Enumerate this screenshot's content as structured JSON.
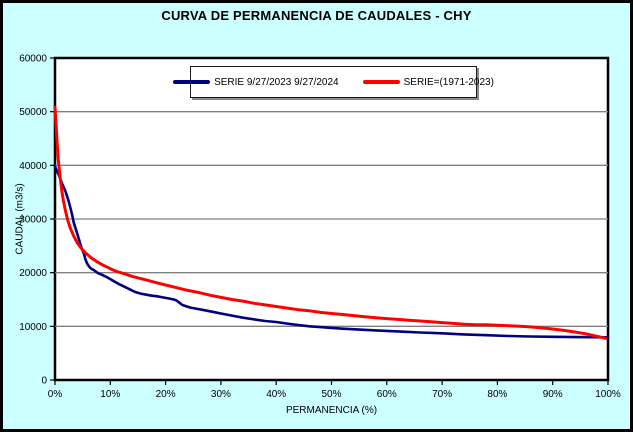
{
  "window": {
    "background_color": "#CCFFFF",
    "border_color": "#000000",
    "plot_background_color": "#FFFFFF",
    "gridline_color": "#808080"
  },
  "chart_data": {
    "type": "line",
    "title": "CURVA DE PERMANENCIA DE CAUDALES - CHY",
    "xlabel": "PERMANENCIA (%)",
    "ylabel": "CAUDAL (m3/s)",
    "xlim": [
      0,
      100
    ],
    "ylim": [
      0,
      60000
    ],
    "x_ticks": [
      "0%",
      "10%",
      "20%",
      "30%",
      "40%",
      "50%",
      "60%",
      "70%",
      "80%",
      "90%",
      "100%"
    ],
    "y_ticks": [
      "0",
      "10000",
      "20000",
      "30000",
      "40000",
      "50000",
      "60000"
    ],
    "grid": "horizontal",
    "legend_position": "top-center-inside",
    "series": [
      {
        "name": "SERIE 9/27/2023 9/27/2024",
        "color": "#000080",
        "line_width": 2.6,
        "points": [
          [
            0,
            39800
          ],
          [
            0.3,
            39000
          ],
          [
            0.7,
            38200
          ],
          [
            1,
            37400
          ],
          [
            1.4,
            36300
          ],
          [
            1.8,
            35400
          ],
          [
            2.2,
            34200
          ],
          [
            2.5,
            33200
          ],
          [
            2.8,
            32000
          ],
          [
            3.1,
            30800
          ],
          [
            3.4,
            29300
          ],
          [
            3.8,
            28000
          ],
          [
            4.1,
            27000
          ],
          [
            4.3,
            26300
          ],
          [
            4.6,
            25300
          ],
          [
            4.9,
            24300
          ],
          [
            5.2,
            23600
          ],
          [
            5.5,
            22500
          ],
          [
            5.8,
            21700
          ],
          [
            6.2,
            21100
          ],
          [
            6.6,
            20700
          ],
          [
            7,
            20500
          ],
          [
            7.5,
            20100
          ],
          [
            8,
            19800
          ],
          [
            8.5,
            19600
          ],
          [
            9.5,
            19100
          ],
          [
            10.5,
            18500
          ],
          [
            11.5,
            17900
          ],
          [
            12.5,
            17400
          ],
          [
            13.5,
            16900
          ],
          [
            14.5,
            16400
          ],
          [
            15.5,
            16100
          ],
          [
            16.5,
            15900
          ],
          [
            17.5,
            15700
          ],
          [
            18.5,
            15600
          ],
          [
            19.5,
            15400
          ],
          [
            20.5,
            15200
          ],
          [
            21.5,
            15000
          ],
          [
            22,
            14800
          ],
          [
            22.5,
            14400
          ],
          [
            23,
            14000
          ],
          [
            23.5,
            13800
          ],
          [
            24.5,
            13500
          ],
          [
            25.5,
            13300
          ],
          [
            27,
            13000
          ],
          [
            28.5,
            12700
          ],
          [
            30,
            12400
          ],
          [
            32,
            12000
          ],
          [
            34,
            11600
          ],
          [
            36,
            11300
          ],
          [
            38,
            11000
          ],
          [
            40,
            10800
          ],
          [
            42,
            10500
          ],
          [
            44,
            10250
          ],
          [
            46,
            10000
          ],
          [
            48,
            9850
          ],
          [
            50,
            9700
          ],
          [
            52,
            9550
          ],
          [
            55,
            9400
          ],
          [
            58,
            9250
          ],
          [
            60,
            9150
          ],
          [
            63,
            9000
          ],
          [
            66,
            8850
          ],
          [
            70,
            8700
          ],
          [
            74,
            8500
          ],
          [
            78,
            8350
          ],
          [
            82,
            8200
          ],
          [
            86,
            8100
          ],
          [
            90,
            8050
          ],
          [
            94,
            8000
          ],
          [
            97,
            7980
          ],
          [
            100,
            7950
          ]
        ]
      },
      {
        "name": "SERIE=(1971-2023)",
        "color": "#FF0000",
        "line_width": 3,
        "points": [
          [
            0,
            50800
          ],
          [
            0.2,
            47500
          ],
          [
            0.4,
            44000
          ],
          [
            0.6,
            41000
          ],
          [
            0.9,
            38000
          ],
          [
            1.2,
            35500
          ],
          [
            1.5,
            33500
          ],
          [
            1.9,
            31500
          ],
          [
            2.3,
            29800
          ],
          [
            2.8,
            28200
          ],
          [
            3.4,
            26800
          ],
          [
            4,
            25600
          ],
          [
            4.7,
            24600
          ],
          [
            5.5,
            23700
          ],
          [
            6.5,
            22800
          ],
          [
            7.5,
            22100
          ],
          [
            8.5,
            21500
          ],
          [
            9.5,
            21000
          ],
          [
            10.5,
            20500
          ],
          [
            11.5,
            20100
          ],
          [
            12.5,
            19800
          ],
          [
            14,
            19300
          ],
          [
            15.5,
            18900
          ],
          [
            17,
            18500
          ],
          [
            18.5,
            18100
          ],
          [
            20,
            17700
          ],
          [
            22,
            17200
          ],
          [
            24,
            16700
          ],
          [
            26,
            16300
          ],
          [
            28,
            15800
          ],
          [
            30,
            15400
          ],
          [
            32,
            15000
          ],
          [
            34,
            14700
          ],
          [
            36,
            14300
          ],
          [
            38,
            14000
          ],
          [
            40,
            13700
          ],
          [
            42,
            13400
          ],
          [
            44,
            13100
          ],
          [
            46,
            12900
          ],
          [
            48,
            12600
          ],
          [
            50,
            12400
          ],
          [
            52,
            12200
          ],
          [
            54,
            12000
          ],
          [
            56,
            11800
          ],
          [
            58,
            11600
          ],
          [
            60,
            11450
          ],
          [
            62,
            11300
          ],
          [
            64,
            11150
          ],
          [
            66,
            11000
          ],
          [
            68,
            10850
          ],
          [
            70,
            10700
          ],
          [
            72,
            10550
          ],
          [
            74,
            10400
          ],
          [
            76,
            10300
          ],
          [
            78,
            10300
          ],
          [
            80,
            10200
          ],
          [
            82,
            10100
          ],
          [
            84,
            10000
          ],
          [
            86,
            9900
          ],
          [
            88,
            9700
          ],
          [
            90,
            9500
          ],
          [
            92,
            9250
          ],
          [
            94,
            8950
          ],
          [
            96,
            8600
          ],
          [
            98,
            8150
          ],
          [
            99,
            7900
          ],
          [
            99.6,
            7750
          ]
        ]
      }
    ]
  }
}
